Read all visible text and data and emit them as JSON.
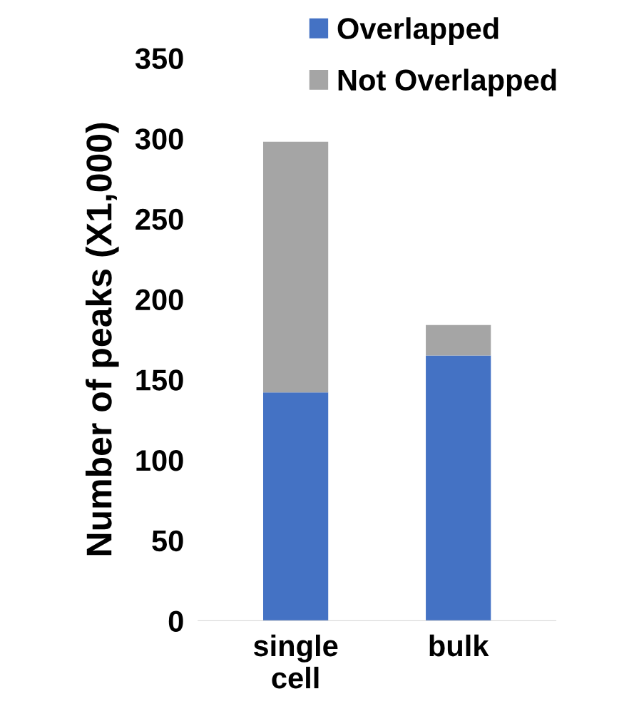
{
  "chart_data": {
    "type": "bar",
    "stacked": true,
    "ylabel": "Number of peaks (X1,000)",
    "categories": [
      "single\ncell",
      "bulk"
    ],
    "series": [
      {
        "name": "Overlapped",
        "color": "#4472c4",
        "values": [
          142,
          165
        ]
      },
      {
        "name": "Not Overlapped",
        "color": "#a5a5a5",
        "values": [
          156,
          19
        ]
      }
    ],
    "ylim": [
      0,
      350
    ],
    "yticks": [
      0,
      50,
      100,
      150,
      200,
      250,
      300,
      350
    ],
    "grid": false,
    "legend": "top right"
  }
}
